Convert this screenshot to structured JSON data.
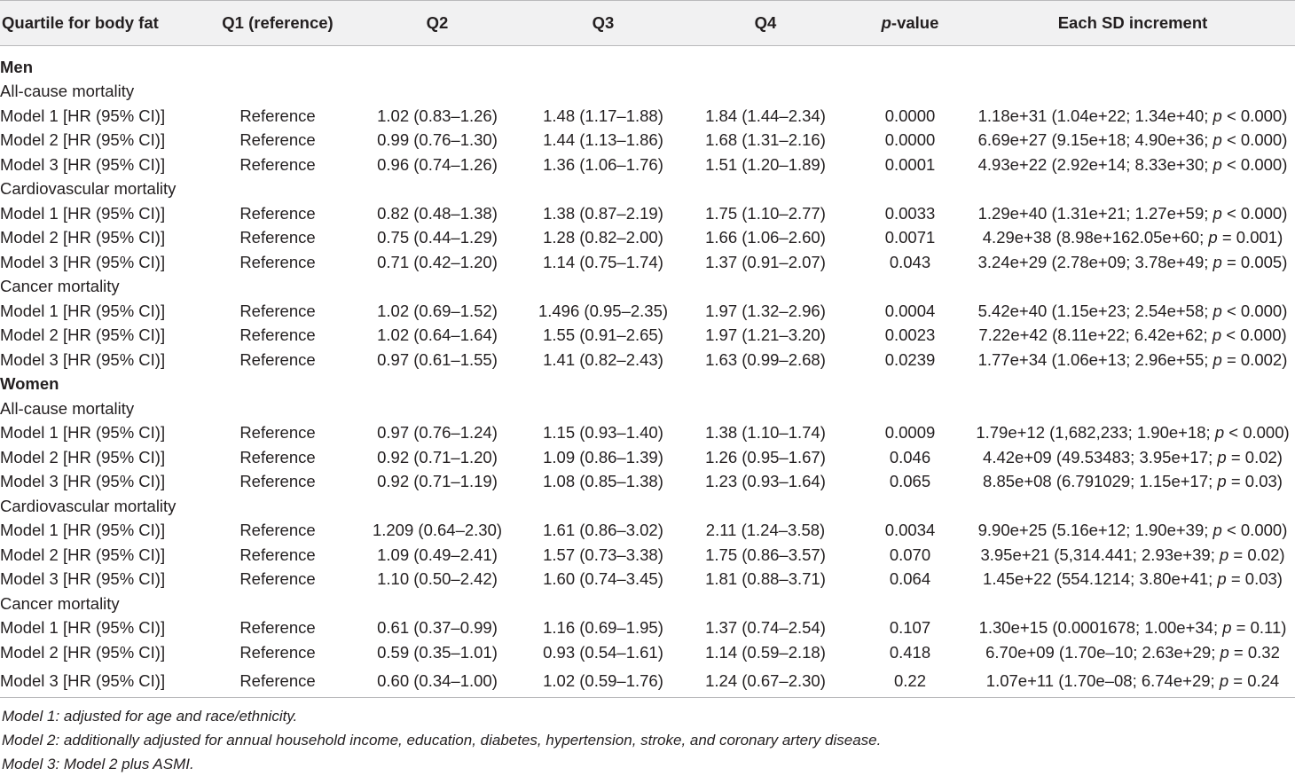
{
  "columns": [
    "Quartile for body fat",
    "Q1 (reference)",
    "Q2",
    "Q3",
    "Q4",
    "p-value",
    "Each SD increment"
  ],
  "rows": [
    {
      "type": "group",
      "label": "Men"
    },
    {
      "type": "sub",
      "label": "All-cause mortality"
    },
    {
      "type": "data",
      "cells": [
        "Model 1 [HR (95% CI)]",
        "Reference",
        "1.02 (0.83–1.26)",
        "1.48 (1.17–1.88)",
        "1.84 (1.44–2.34)",
        "0.0000",
        "1.18e+31 (1.04e+22; 1.34e+40; p < 0.000)"
      ]
    },
    {
      "type": "data",
      "cells": [
        "Model 2 [HR (95% CI)]",
        "Reference",
        "0.99 (0.76–1.30)",
        "1.44 (1.13–1.86)",
        "1.68 (1.31–2.16)",
        "0.0000",
        "6.69e+27 (9.15e+18; 4.90e+36; p < 0.000)"
      ]
    },
    {
      "type": "data",
      "cells": [
        "Model 3 [HR (95% CI)]",
        "Reference",
        "0.96 (0.74–1.26)",
        "1.36 (1.06–1.76)",
        "1.51 (1.20–1.89)",
        "0.0001",
        "4.93e+22 (2.92e+14; 8.33e+30; p < 0.000)"
      ]
    },
    {
      "type": "sub",
      "label": "Cardiovascular mortality"
    },
    {
      "type": "data",
      "cells": [
        "Model 1 [HR (95% CI)]",
        "Reference",
        "0.82 (0.48–1.38)",
        "1.38 (0.87–2.19)",
        "1.75 (1.10–2.77)",
        "0.0033",
        "1.29e+40 (1.31e+21; 1.27e+59; p < 0.000)"
      ]
    },
    {
      "type": "data",
      "cells": [
        "Model 2 [HR (95% CI)]",
        "Reference",
        "0.75 (0.44–1.29)",
        "1.28 (0.82–2.00)",
        "1.66 (1.06–2.60)",
        "0.0071",
        "4.29e+38 (8.98e+162.05e+60; p = 0.001)"
      ]
    },
    {
      "type": "data",
      "cells": [
        "Model 3 [HR (95% CI)]",
        "Reference",
        "0.71 (0.42–1.20)",
        "1.14 (0.75–1.74)",
        "1.37 (0.91–2.07)",
        "0.043",
        "3.24e+29 (2.78e+09; 3.78e+49; p = 0.005)"
      ]
    },
    {
      "type": "sub",
      "label": "Cancer mortality"
    },
    {
      "type": "data",
      "cells": [
        "Model 1 [HR (95% CI)]",
        "Reference",
        "1.02 (0.69–1.52)",
        "1.496 (0.95–2.35)",
        "1.97 (1.32–2.96)",
        "0.0004",
        "5.42e+40 (1.15e+23; 2.54e+58; p < 0.000)"
      ]
    },
    {
      "type": "data",
      "cells": [
        "Model 2 [HR (95% CI)]",
        "Reference",
        "1.02 (0.64–1.64)",
        "1.55 (0.91–2.65)",
        "1.97 (1.21–3.20)",
        "0.0023",
        "7.22e+42 (8.11e+22; 6.42e+62; p < 0.000)"
      ]
    },
    {
      "type": "data",
      "cells": [
        "Model 3 [HR (95% CI)]",
        "Reference",
        "0.97 (0.61–1.55)",
        "1.41 (0.82–2.43)",
        "1.63 (0.99–2.68)",
        "0.0239",
        "1.77e+34 (1.06e+13; 2.96e+55; p = 0.002)"
      ]
    },
    {
      "type": "group",
      "label": "Women"
    },
    {
      "type": "sub",
      "label": "All-cause mortality"
    },
    {
      "type": "data",
      "cells": [
        "Model 1 [HR (95% CI)]",
        "Reference",
        "0.97 (0.76–1.24)",
        "1.15 (0.93–1.40)",
        "1.38 (1.10–1.74)",
        "0.0009",
        "1.79e+12 (1,682,233; 1.90e+18; p < 0.000)"
      ]
    },
    {
      "type": "data",
      "cells": [
        "Model 2 [HR (95% CI)]",
        "Reference",
        "0.92 (0.71–1.20)",
        "1.09 (0.86–1.39)",
        "1.26 (0.95–1.67)",
        "0.046",
        "4.42e+09 (49.53483; 3.95e+17; p = 0.02)"
      ]
    },
    {
      "type": "data",
      "cells": [
        "Model 3 [HR (95% CI)]",
        "Reference",
        "0.92 (0.71–1.19)",
        "1.08 (0.85–1.38)",
        "1.23 (0.93–1.64)",
        "0.065",
        "8.85e+08 (6.791029; 1.15e+17; p = 0.03)"
      ]
    },
    {
      "type": "sub",
      "label": "Cardiovascular mortality"
    },
    {
      "type": "data",
      "cells": [
        "Model 1 [HR (95% CI)]",
        "Reference",
        "1.209 (0.64–2.30)",
        "1.61 (0.86–3.02)",
        "2.11 (1.24–3.58)",
        "0.0034",
        "9.90e+25 (5.16e+12; 1.90e+39; p < 0.000)"
      ]
    },
    {
      "type": "data",
      "cells": [
        "Model 2 [HR (95% CI)]",
        "Reference",
        "1.09 (0.49–2.41)",
        "1.57 (0.73–3.38)",
        "1.75 (0.86–3.57)",
        "0.070",
        "3.95e+21 (5,314.441; 2.93e+39; p = 0.02)"
      ]
    },
    {
      "type": "data",
      "cells": [
        "Model 3 [HR (95% CI)]",
        "Reference",
        "1.10 (0.50–2.42)",
        "1.60 (0.74–3.45)",
        "1.81 (0.88–3.71)",
        "0.064",
        "1.45e+22 (554.1214; 3.80e+41; p = 0.03)"
      ]
    },
    {
      "type": "sub",
      "label": "Cancer mortality"
    },
    {
      "type": "data",
      "cells": [
        "Model 1 [HR (95% CI)]",
        "Reference",
        "0.61 (0.37–0.99)",
        "1.16 (0.69–1.95)",
        "1.37 (0.74–2.54)",
        "0.107",
        "1.30e+15 (0.0001678; 1.00e+34; p = 0.11)"
      ]
    },
    {
      "type": "data",
      "cells": [
        "Model 2 [HR (95% CI)]",
        "Reference",
        "0.59 (0.35–1.01)",
        "0.93 (0.54–1.61)",
        "1.14 (0.59–2.18)",
        "0.418",
        "6.70e+09 (1.70e–10; 2.63e+29; p = 0.32"
      ]
    },
    {
      "type": "data",
      "cells": [
        "Model 3 [HR (95% CI)]",
        "Reference",
        "0.60 (0.34–1.00)",
        "1.02 (0.59–1.76)",
        "1.24 (0.67–2.30)",
        "0.22",
        "1.07e+11 (1.70e–08; 6.74e+29; p = 0.24"
      ]
    }
  ],
  "notes": [
    "Model 1: adjusted for age and race/ethnicity.",
    "Model 2: additionally adjusted for annual household income, education, diabetes, hypertension, stroke, and coronary artery disease.",
    "Model 3: Model 2 plus ASMI."
  ]
}
